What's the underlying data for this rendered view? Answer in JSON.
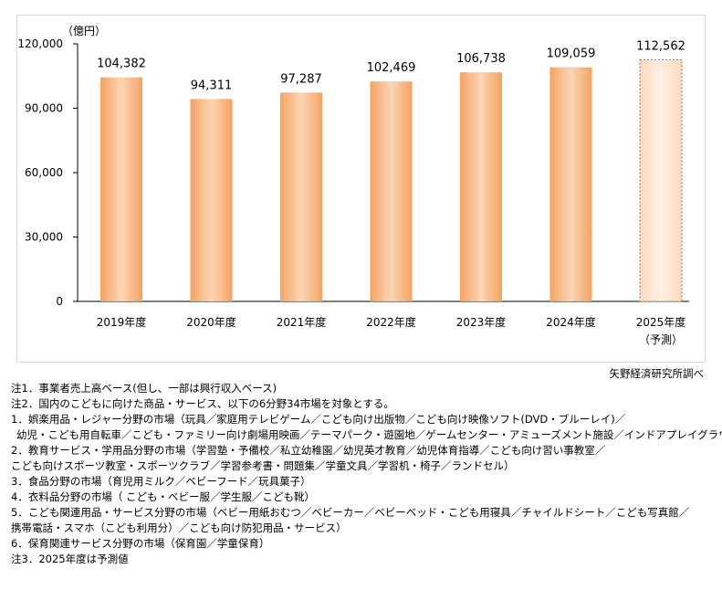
{
  "chart_data": {
    "type": "bar",
    "unit_label": "（億円）",
    "categories": [
      "2019年度",
      "2020年度",
      "2021年度",
      "2022年度",
      "2023年度",
      "2024年度",
      "2025年度"
    ],
    "category_sublabels": [
      "",
      "",
      "",
      "",
      "",
      "",
      "（予測）"
    ],
    "values": [
      104382,
      94311,
      97287,
      102469,
      106738,
      109059,
      112562
    ],
    "data_labels": [
      "104,382",
      "94,311",
      "97,287",
      "102,469",
      "106,738",
      "109,059",
      "112,562"
    ],
    "forecast": [
      false,
      false,
      false,
      false,
      false,
      false,
      true
    ],
    "ylim": [
      0,
      120000
    ],
    "yticks": [
      0,
      30000,
      60000,
      90000,
      120000
    ],
    "ytick_labels": [
      "0",
      "30,000",
      "60,000",
      "90,000",
      "120,000"
    ],
    "grid": false,
    "colors": {
      "bar": "#f4a361",
      "bar_light": "#fcd5b4",
      "forecast_bar": "#fde3cf",
      "forecast_border": "#808080"
    }
  },
  "source": "矢野経済研究所調べ",
  "notes": [
    "注1．事業者売上高ベース(但し、一部は興行収入ベース)",
    "注2．国内のこどもに向けた商品・サービス、以下の6分野34市場を対象とする。",
    "1．娯楽用品・レジャー分野の市場（玩具／家庭用テレビゲーム／こども向け出版物／こども向け映像ソフト(DVD・ブルーレイ)／",
    "幼児・こども用自転車／こども・ファミリー向け劇場用映画／テーマパーク・遊園地／ゲームセンター・アミューズメント施設／インドアプレイグラウンド)",
    "2．教育サービス・学用品分野の市場（学習塾・予備校／私立幼稚園／幼児英才教育／幼児体育指導／こども向け習い事教室／",
    "こども向けスポーツ教室・スポーツクラブ／学習参考書・問題集／学童文具／学習机・椅子／ランドセル）",
    "3．食品分野の市場（育児用ミルク／ベビーフード／玩具菓子）",
    "4．衣料品分野の市場（ こども・ベビー服／学生服／こども靴）",
    "5．こども関連用品・サービス分野の市場（ベビー用紙おむつ／ベビーカー／ベビーベッド・こども用寝具／チャイルドシート／こども写真館／",
    "携帯電話・スマホ（こども利用分）／こども向け防犯用品・サービス）",
    "6．保育関連サービス分野の市場（保育園／学童保育）",
    "注3．2025年度は予測値"
  ]
}
